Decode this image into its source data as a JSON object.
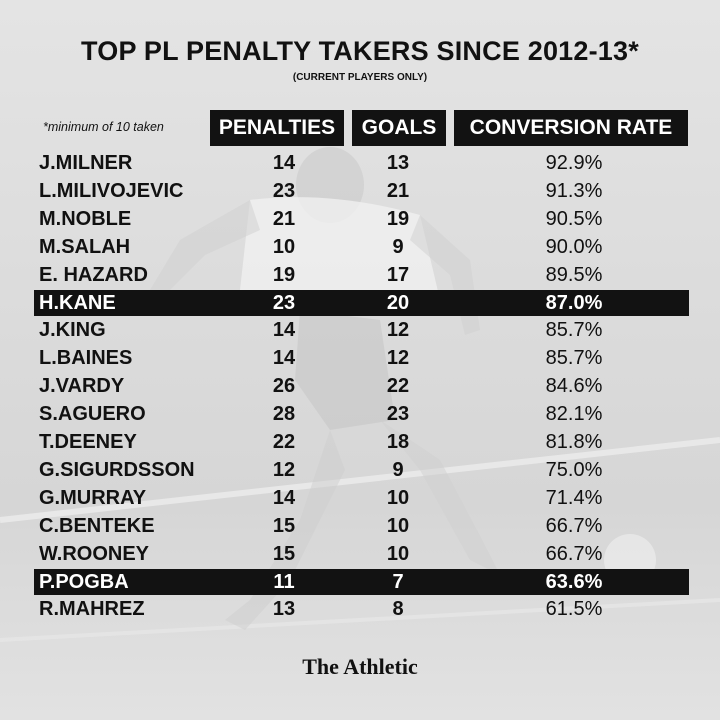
{
  "header": {
    "title": "TOP PL PENALTY TAKERS SINCE 2012-13*",
    "subtitle": "(CURRENT PLAYERS ONLY)",
    "footnote": "*minimum of 10 taken"
  },
  "brand": "The Athletic",
  "colors": {
    "band": "#121212",
    "text": "#111111",
    "background": "#dedede"
  },
  "chart_data": {
    "type": "table",
    "title": "TOP PL PENALTY TAKERS SINCE 2012-13*",
    "subtitle": "(CURRENT PLAYERS ONLY)",
    "columns": [
      "PENALTIES",
      "GOALS",
      "CONVERSION RATE"
    ],
    "highlighted": [
      "H.KANE",
      "P.POGBA"
    ],
    "rows": [
      {
        "name": "J.MILNER",
        "penalties": "14",
        "goals": "13",
        "conversion": "92.9%"
      },
      {
        "name": "L.MILIVOJEVIC",
        "penalties": "23",
        "goals": "21",
        "conversion": "91.3%"
      },
      {
        "name": "M.NOBLE",
        "penalties": "21",
        "goals": "19",
        "conversion": "90.5%"
      },
      {
        "name": "M.SALAH",
        "penalties": "10",
        "goals": "9",
        "conversion": "90.0%"
      },
      {
        "name": "E. HAZARD",
        "penalties": "19",
        "goals": "17",
        "conversion": "89.5%"
      },
      {
        "name": "H.KANE",
        "penalties": "23",
        "goals": "20",
        "conversion": "87.0%"
      },
      {
        "name": "J.KING",
        "penalties": "14",
        "goals": "12",
        "conversion": "85.7%"
      },
      {
        "name": "L.BAINES",
        "penalties": "14",
        "goals": "12",
        "conversion": "85.7%"
      },
      {
        "name": "J.VARDY",
        "penalties": "26",
        "goals": "22",
        "conversion": "84.6%"
      },
      {
        "name": "S.AGUERO",
        "penalties": "28",
        "goals": "23",
        "conversion": "82.1%"
      },
      {
        "name": "T.DEENEY",
        "penalties": "22",
        "goals": "18",
        "conversion": "81.8%"
      },
      {
        "name": "G.SIGURDSSON",
        "penalties": "12",
        "goals": "9",
        "conversion": "75.0%"
      },
      {
        "name": "G.MURRAY",
        "penalties": "14",
        "goals": "10",
        "conversion": "71.4%"
      },
      {
        "name": "C.BENTEKE",
        "penalties": "15",
        "goals": "10",
        "conversion": "66.7%"
      },
      {
        "name": "W.ROONEY",
        "penalties": "15",
        "goals": "10",
        "conversion": "66.7%"
      },
      {
        "name": "P.POGBA",
        "penalties": "11",
        "goals": "7",
        "conversion": "63.6%"
      },
      {
        "name": "R.MAHREZ",
        "penalties": "13",
        "goals": "8",
        "conversion": "61.5%"
      }
    ]
  }
}
